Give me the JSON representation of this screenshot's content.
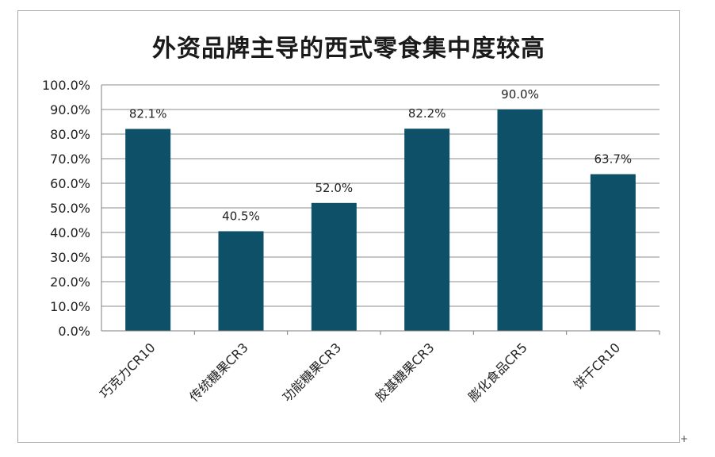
{
  "chart_data": {
    "type": "bar",
    "title": "外资品牌主导的西式零食集中度较高",
    "categories": [
      "巧克力CR10",
      "传统糖果CR3",
      "功能糖果CR3",
      "胶基糖果CR3",
      "膨化食品CR5",
      "饼干CR10"
    ],
    "values": [
      82.1,
      40.5,
      52.0,
      82.2,
      90.0,
      63.7
    ],
    "data_labels": [
      "82.1%",
      "40.5%",
      "52.0%",
      "82.2%",
      "90.0%",
      "63.7%"
    ],
    "yticks": [
      "0.0%",
      "10.0%",
      "20.0%",
      "30.0%",
      "40.0%",
      "50.0%",
      "60.0%",
      "70.0%",
      "80.0%",
      "90.0%",
      "100.0%"
    ],
    "ylim": [
      0,
      100
    ],
    "xlabel": "",
    "ylabel": "",
    "grid": true,
    "legend": "none",
    "bar_color": "#0d5068"
  },
  "corner_mark": "+"
}
